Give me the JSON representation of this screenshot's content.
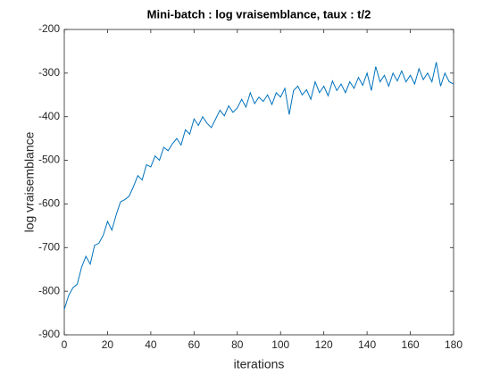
{
  "chart_data": {
    "type": "line",
    "title": "Mini-batch : log vraisemblance, taux : t/2",
    "xlabel": "iterations",
    "ylabel": "log vraisemblance",
    "x": [
      0,
      2,
      4,
      6,
      8,
      10,
      12,
      14,
      16,
      18,
      20,
      22,
      24,
      26,
      28,
      30,
      32,
      34,
      36,
      38,
      40,
      42,
      44,
      46,
      48,
      50,
      52,
      54,
      56,
      58,
      60,
      62,
      64,
      66,
      68,
      70,
      72,
      74,
      76,
      78,
      80,
      82,
      84,
      86,
      88,
      90,
      92,
      94,
      96,
      98,
      100,
      102,
      104,
      106,
      108,
      110,
      112,
      114,
      116,
      118,
      120,
      122,
      124,
      126,
      128,
      130,
      132,
      134,
      136,
      138,
      140,
      142,
      144,
      146,
      148,
      150,
      152,
      154,
      156,
      158,
      160,
      162,
      164,
      166,
      168,
      170,
      172,
      174,
      176,
      178,
      180
    ],
    "series": [
      {
        "color": "#0072bd",
        "values": [
          -842,
          -810,
          -792,
          -784,
          -745,
          -720,
          -738,
          -695,
          -690,
          -672,
          -640,
          -660,
          -625,
          -595,
          -590,
          -582,
          -560,
          -535,
          -545,
          -510,
          -515,
          -490,
          -500,
          -470,
          -478,
          -462,
          -450,
          -465,
          -430,
          -440,
          -405,
          -420,
          -400,
          -415,
          -425,
          -405,
          -385,
          -398,
          -375,
          -390,
          -380,
          -360,
          -378,
          -345,
          -370,
          -355,
          -365,
          -350,
          -372,
          -345,
          -355,
          -335,
          -395,
          -340,
          -330,
          -350,
          -338,
          -360,
          -320,
          -345,
          -330,
          -352,
          -318,
          -340,
          -325,
          -345,
          -320,
          -335,
          -310,
          -328,
          -300,
          -340,
          -285,
          -320,
          -305,
          -330,
          -300,
          -318,
          -295,
          -320,
          -305,
          -325,
          -290,
          -315,
          -300,
          -320,
          -275,
          -330,
          -300,
          -320,
          -325
        ]
      }
    ],
    "xlim": [
      0,
      180
    ],
    "ylim": [
      -900,
      -200
    ],
    "xticks": [
      0,
      20,
      40,
      60,
      80,
      100,
      120,
      140,
      160,
      180
    ],
    "yticks": [
      -900,
      -800,
      -700,
      -600,
      -500,
      -400,
      -300,
      -200
    ]
  }
}
